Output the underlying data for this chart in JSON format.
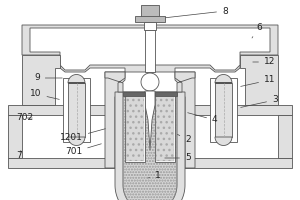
{
  "bg_color": "#ffffff",
  "line_color": "#555555",
  "fill_light": "#e0e0e0",
  "fill_medium": "#bbbbbb",
  "fill_dark": "#666666",
  "fill_dots": "#d0d0d0",
  "label_fontsize": 6.5
}
